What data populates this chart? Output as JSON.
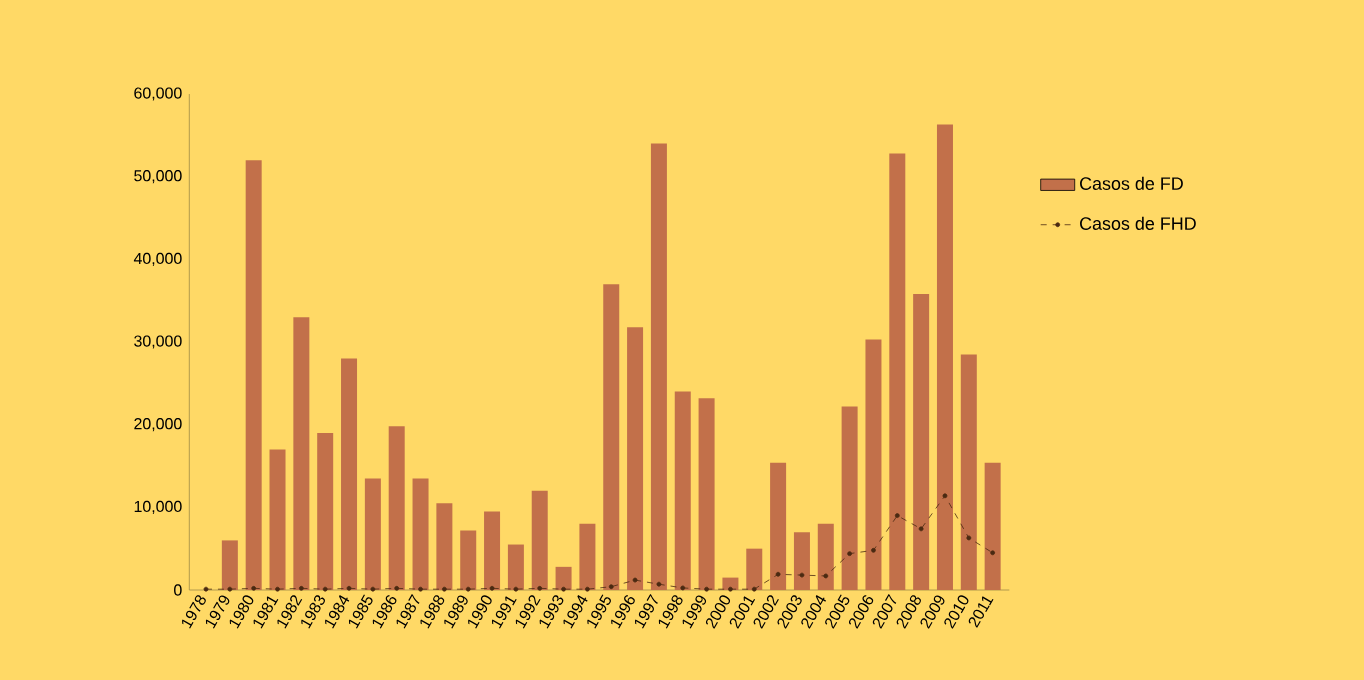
{
  "chart_data": {
    "type": "bar",
    "categories": [
      "1978",
      "1979",
      "1980",
      "1981",
      "1982",
      "1983",
      "1984",
      "1985",
      "1986",
      "1987",
      "1988",
      "1989",
      "1990",
      "1991",
      "1992",
      "1993",
      "1994",
      "1995",
      "1996",
      "1997",
      "1998",
      "1999",
      "2000",
      "2001",
      "2002",
      "2003",
      "2004",
      "2005",
      "2006",
      "2007",
      "2008",
      "2009",
      "2010",
      "2011"
    ],
    "series": [
      {
        "name": "Casos de FD",
        "color": "#c2704a",
        "values": [
          0,
          6000,
          52000,
          17000,
          33000,
          19000,
          28000,
          13500,
          19800,
          13500,
          10500,
          7200,
          9500,
          5500,
          12000,
          2800,
          8000,
          37000,
          31800,
          54000,
          24000,
          23200,
          1500,
          5000,
          15400,
          7000,
          8000,
          22200,
          30300,
          52800,
          35800,
          56300,
          28500,
          15400
        ]
      },
      {
        "name": "Casos de FHD",
        "type": "line",
        "color": "#4a2a12",
        "line_style": "dashed",
        "marker": "circle",
        "values": [
          100,
          100,
          200,
          100,
          200,
          100,
          200,
          100,
          200,
          100,
          100,
          100,
          200,
          100,
          200,
          100,
          100,
          400,
          1200,
          700,
          250,
          100,
          100,
          100,
          1900,
          1800,
          1700,
          4400,
          4800,
          9000,
          7400,
          11400,
          6300,
          4500
        ]
      }
    ],
    "ylim": [
      0,
      60000
    ],
    "yticks": [
      {
        "value": 0,
        "label": "0"
      },
      {
        "value": 10000,
        "label": "10,000"
      },
      {
        "value": 20000,
        "label": "20,000"
      },
      {
        "value": 30000,
        "label": "30,000"
      },
      {
        "value": 40000,
        "label": "40,000"
      },
      {
        "value": 50000,
        "label": "50,000"
      },
      {
        "value": 60000,
        "label": "60,000"
      }
    ],
    "grid": false,
    "legend": "right"
  }
}
